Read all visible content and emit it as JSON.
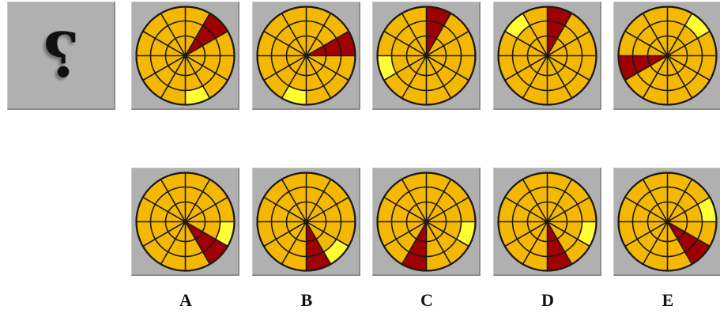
{
  "question": {
    "mark": "?"
  },
  "colors": {
    "base": "#f5b800",
    "yellow": "#ffff33",
    "red": "#a00000",
    "line": "#1a1a1a",
    "tile": "#b0b0b0"
  },
  "sequence": [
    {
      "red": 1,
      "yellow": 5
    },
    {
      "red": 2,
      "yellow": 6
    },
    {
      "red": 0,
      "yellow": 8
    },
    {
      "red": 0,
      "yellow": 10
    },
    {
      "red": 8,
      "yellow": 1
    }
  ],
  "options": [
    {
      "label": "A",
      "red": 4,
      "yellow": 3
    },
    {
      "label": "B",
      "red": 5,
      "yellow": 4
    },
    {
      "label": "C",
      "red": 6,
      "yellow": 3
    },
    {
      "label": "D",
      "red": 5,
      "yellow": 3
    },
    {
      "label": "E",
      "red": 4,
      "yellow": 2
    }
  ]
}
